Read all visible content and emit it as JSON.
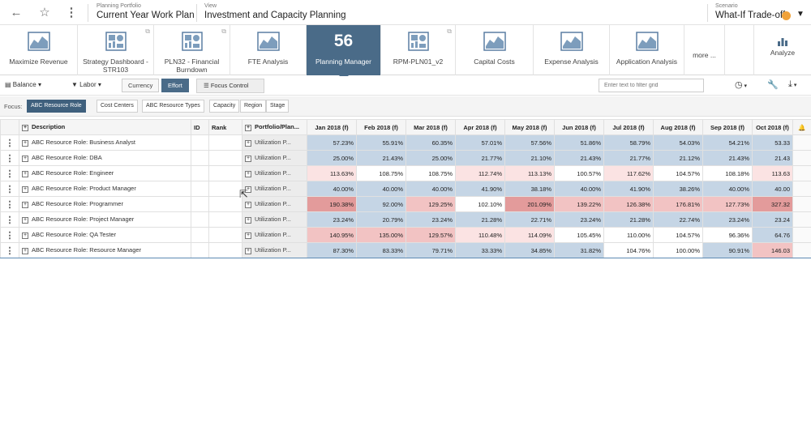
{
  "header": {
    "portfolio_label": "Planning Portfolio",
    "portfolio_value": "Current Year Work Plan",
    "view_label": "View",
    "view_value": "Investment and Capacity Planning",
    "scenario_label": "Scenario",
    "scenario_value": "What-If Trade-off",
    "scenario_color": "#f0a23a"
  },
  "tiles": [
    {
      "label": "Maximize Revenue",
      "icon": "area-chart-icon"
    },
    {
      "label": "Strategy Dashboard - STR103",
      "icon": "dashboard-icon"
    },
    {
      "label": "PLN32 - Financial Burndown",
      "icon": "dashboard-icon"
    },
    {
      "label": "FTE Analysis",
      "icon": "area-chart-icon"
    },
    {
      "label": "Planning Manager",
      "count": "56"
    },
    {
      "label": "RPM-PLN01_v2",
      "icon": "dashboard-icon"
    },
    {
      "label": "Capital Costs",
      "icon": "area-chart-icon"
    },
    {
      "label": "Expense Analysis",
      "icon": "area-chart-icon"
    },
    {
      "label": "Application Analysis",
      "icon": "area-chart-icon"
    },
    {
      "label": "more ..."
    },
    {
      "label": "Analyze",
      "icon": "bar-chart-icon"
    }
  ],
  "toolbar": {
    "balance": "Balance",
    "labor": "Labor",
    "currency": "Currency",
    "effort": "Effort",
    "focus_control": "Focus Control",
    "filter_placeholder": "Enter text to filter grid"
  },
  "focus": {
    "label": "Focus:",
    "chips": [
      "ABC Resource Role",
      "Cost Centers",
      "ABC Resource Types",
      "Capacity",
      "Region",
      "Stage"
    ]
  },
  "grid": {
    "columns": {
      "description": "Description",
      "id": "ID",
      "rank": "Rank",
      "portfolio": "Portfolio/Plan...",
      "months": [
        "Jan 2018 (f)",
        "Feb 2018 (f)",
        "Mar 2018 (f)",
        "Apr 2018 (f)",
        "May 2018 (f)",
        "Jun 2018 (f)",
        "Jul 2018 (f)",
        "Aug 2018 (f)",
        "Sep 2018 (f)",
        "Oct 2018 (f)"
      ]
    },
    "rows": [
      {
        "desc": "ABC Resource Role: Business Analyst",
        "portfolio": "Utilization P...",
        "values": [
          "57.23%",
          "55.91%",
          "60.35%",
          "57.01%",
          "57.56%",
          "51.86%",
          "58.79%",
          "54.03%",
          "54.21%",
          "53.33"
        ]
      },
      {
        "desc": "ABC Resource Role: DBA",
        "portfolio": "Utilization P...",
        "values": [
          "25.00%",
          "21.43%",
          "25.00%",
          "21.77%",
          "21.10%",
          "21.43%",
          "21.77%",
          "21.12%",
          "21.43%",
          "21.43"
        ]
      },
      {
        "desc": "ABC Resource Role: Engineer",
        "portfolio": "Utilization P...",
        "values": [
          "113.63%",
          "108.75%",
          "108.75%",
          "112.74%",
          "113.13%",
          "100.57%",
          "117.62%",
          "104.57%",
          "108.18%",
          "113.63"
        ]
      },
      {
        "desc": "ABC Resource Role: Product Manager",
        "portfolio": "Utilization P...",
        "values": [
          "40.00%",
          "40.00%",
          "40.00%",
          "41.90%",
          "38.18%",
          "40.00%",
          "41.90%",
          "38.26%",
          "40.00%",
          "40.00"
        ]
      },
      {
        "desc": "ABC Resource Role: Programmer",
        "portfolio": "Utilization P...",
        "values": [
          "190.38%",
          "92.00%",
          "129.25%",
          "102.10%",
          "201.09%",
          "139.22%",
          "126.38%",
          "176.81%",
          "127.73%",
          "327.32"
        ]
      },
      {
        "desc": "ABC Resource Role: Project Manager",
        "portfolio": "Utilization P...",
        "values": [
          "23.24%",
          "20.79%",
          "23.24%",
          "21.28%",
          "22.71%",
          "23.24%",
          "21.28%",
          "22.74%",
          "23.24%",
          "23.24"
        ]
      },
      {
        "desc": "ABC Resource Role: QA Tester",
        "portfolio": "Utilization P...",
        "values": [
          "140.95%",
          "135.00%",
          "129.57%",
          "110.48%",
          "114.09%",
          "105.45%",
          "110.00%",
          "104.57%",
          "96.36%",
          "64.76"
        ]
      },
      {
        "desc": "ABC Resource Role: Resource Manager",
        "portfolio": "Utilization P...",
        "values": [
          "87.30%",
          "83.33%",
          "79.71%",
          "33.33%",
          "34.85%",
          "31.82%",
          "104.76%",
          "100.00%",
          "90.91%",
          "146.03"
        ]
      }
    ]
  },
  "colors": {
    "accent": "#4a6b88",
    "under": "#c5d5e5",
    "over_light": "#fbe3e3",
    "over_mid": "#f2c3c3",
    "over_strong": "#e39b9b"
  }
}
